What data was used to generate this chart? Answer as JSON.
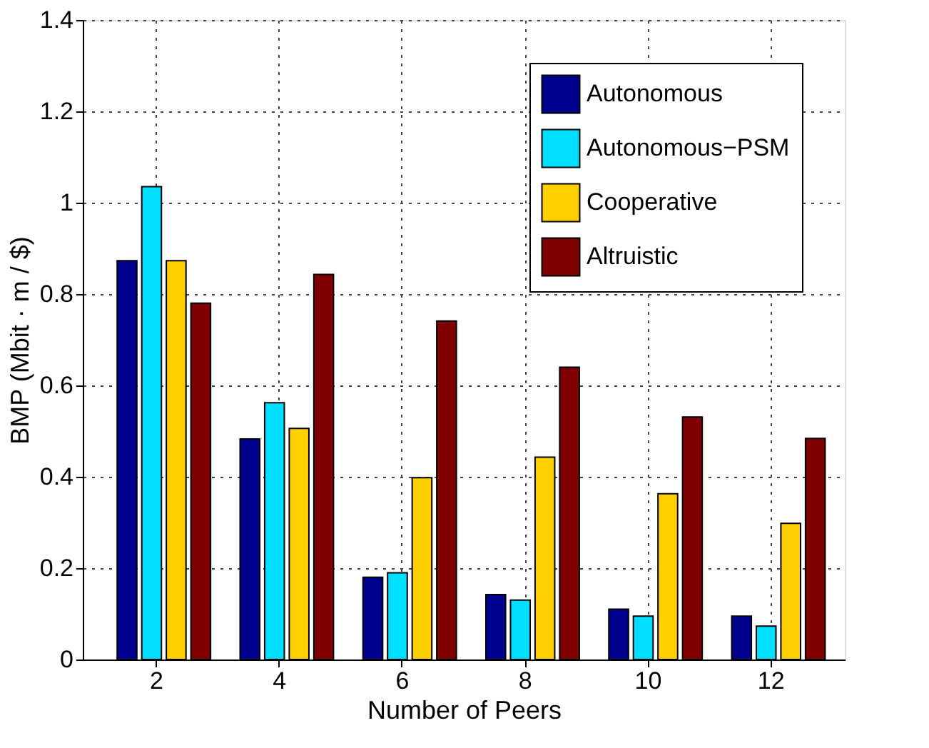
{
  "chart_data": {
    "type": "bar",
    "xlabel": "Number of Peers",
    "ylabel": "BMP (Mbit · m / $)",
    "categories": [
      "2",
      "4",
      "6",
      "8",
      "10",
      "12"
    ],
    "series": [
      {
        "name": "Autonomous",
        "color": "#00008f",
        "values": [
          0.873,
          0.483,
          0.18,
          0.142,
          0.11,
          0.095
        ]
      },
      {
        "name": "Autonomous−PSM",
        "color": "#00dfff",
        "values": [
          1.035,
          0.562,
          0.19,
          0.13,
          0.095,
          0.073
        ]
      },
      {
        "name": "Cooperative",
        "color": "#ffcf00",
        "values": [
          0.873,
          0.506,
          0.398,
          0.443,
          0.363,
          0.298
        ]
      },
      {
        "name": "Altruistic",
        "color": "#800000",
        "values": [
          0.78,
          0.843,
          0.741,
          0.64,
          0.531,
          0.484
        ]
      }
    ],
    "ylim": [
      0,
      1.4
    ],
    "yticks": [
      0,
      0.2,
      0.4,
      0.6,
      0.8,
      1,
      1.2,
      1.4
    ],
    "grid": true,
    "legend": "top right"
  }
}
